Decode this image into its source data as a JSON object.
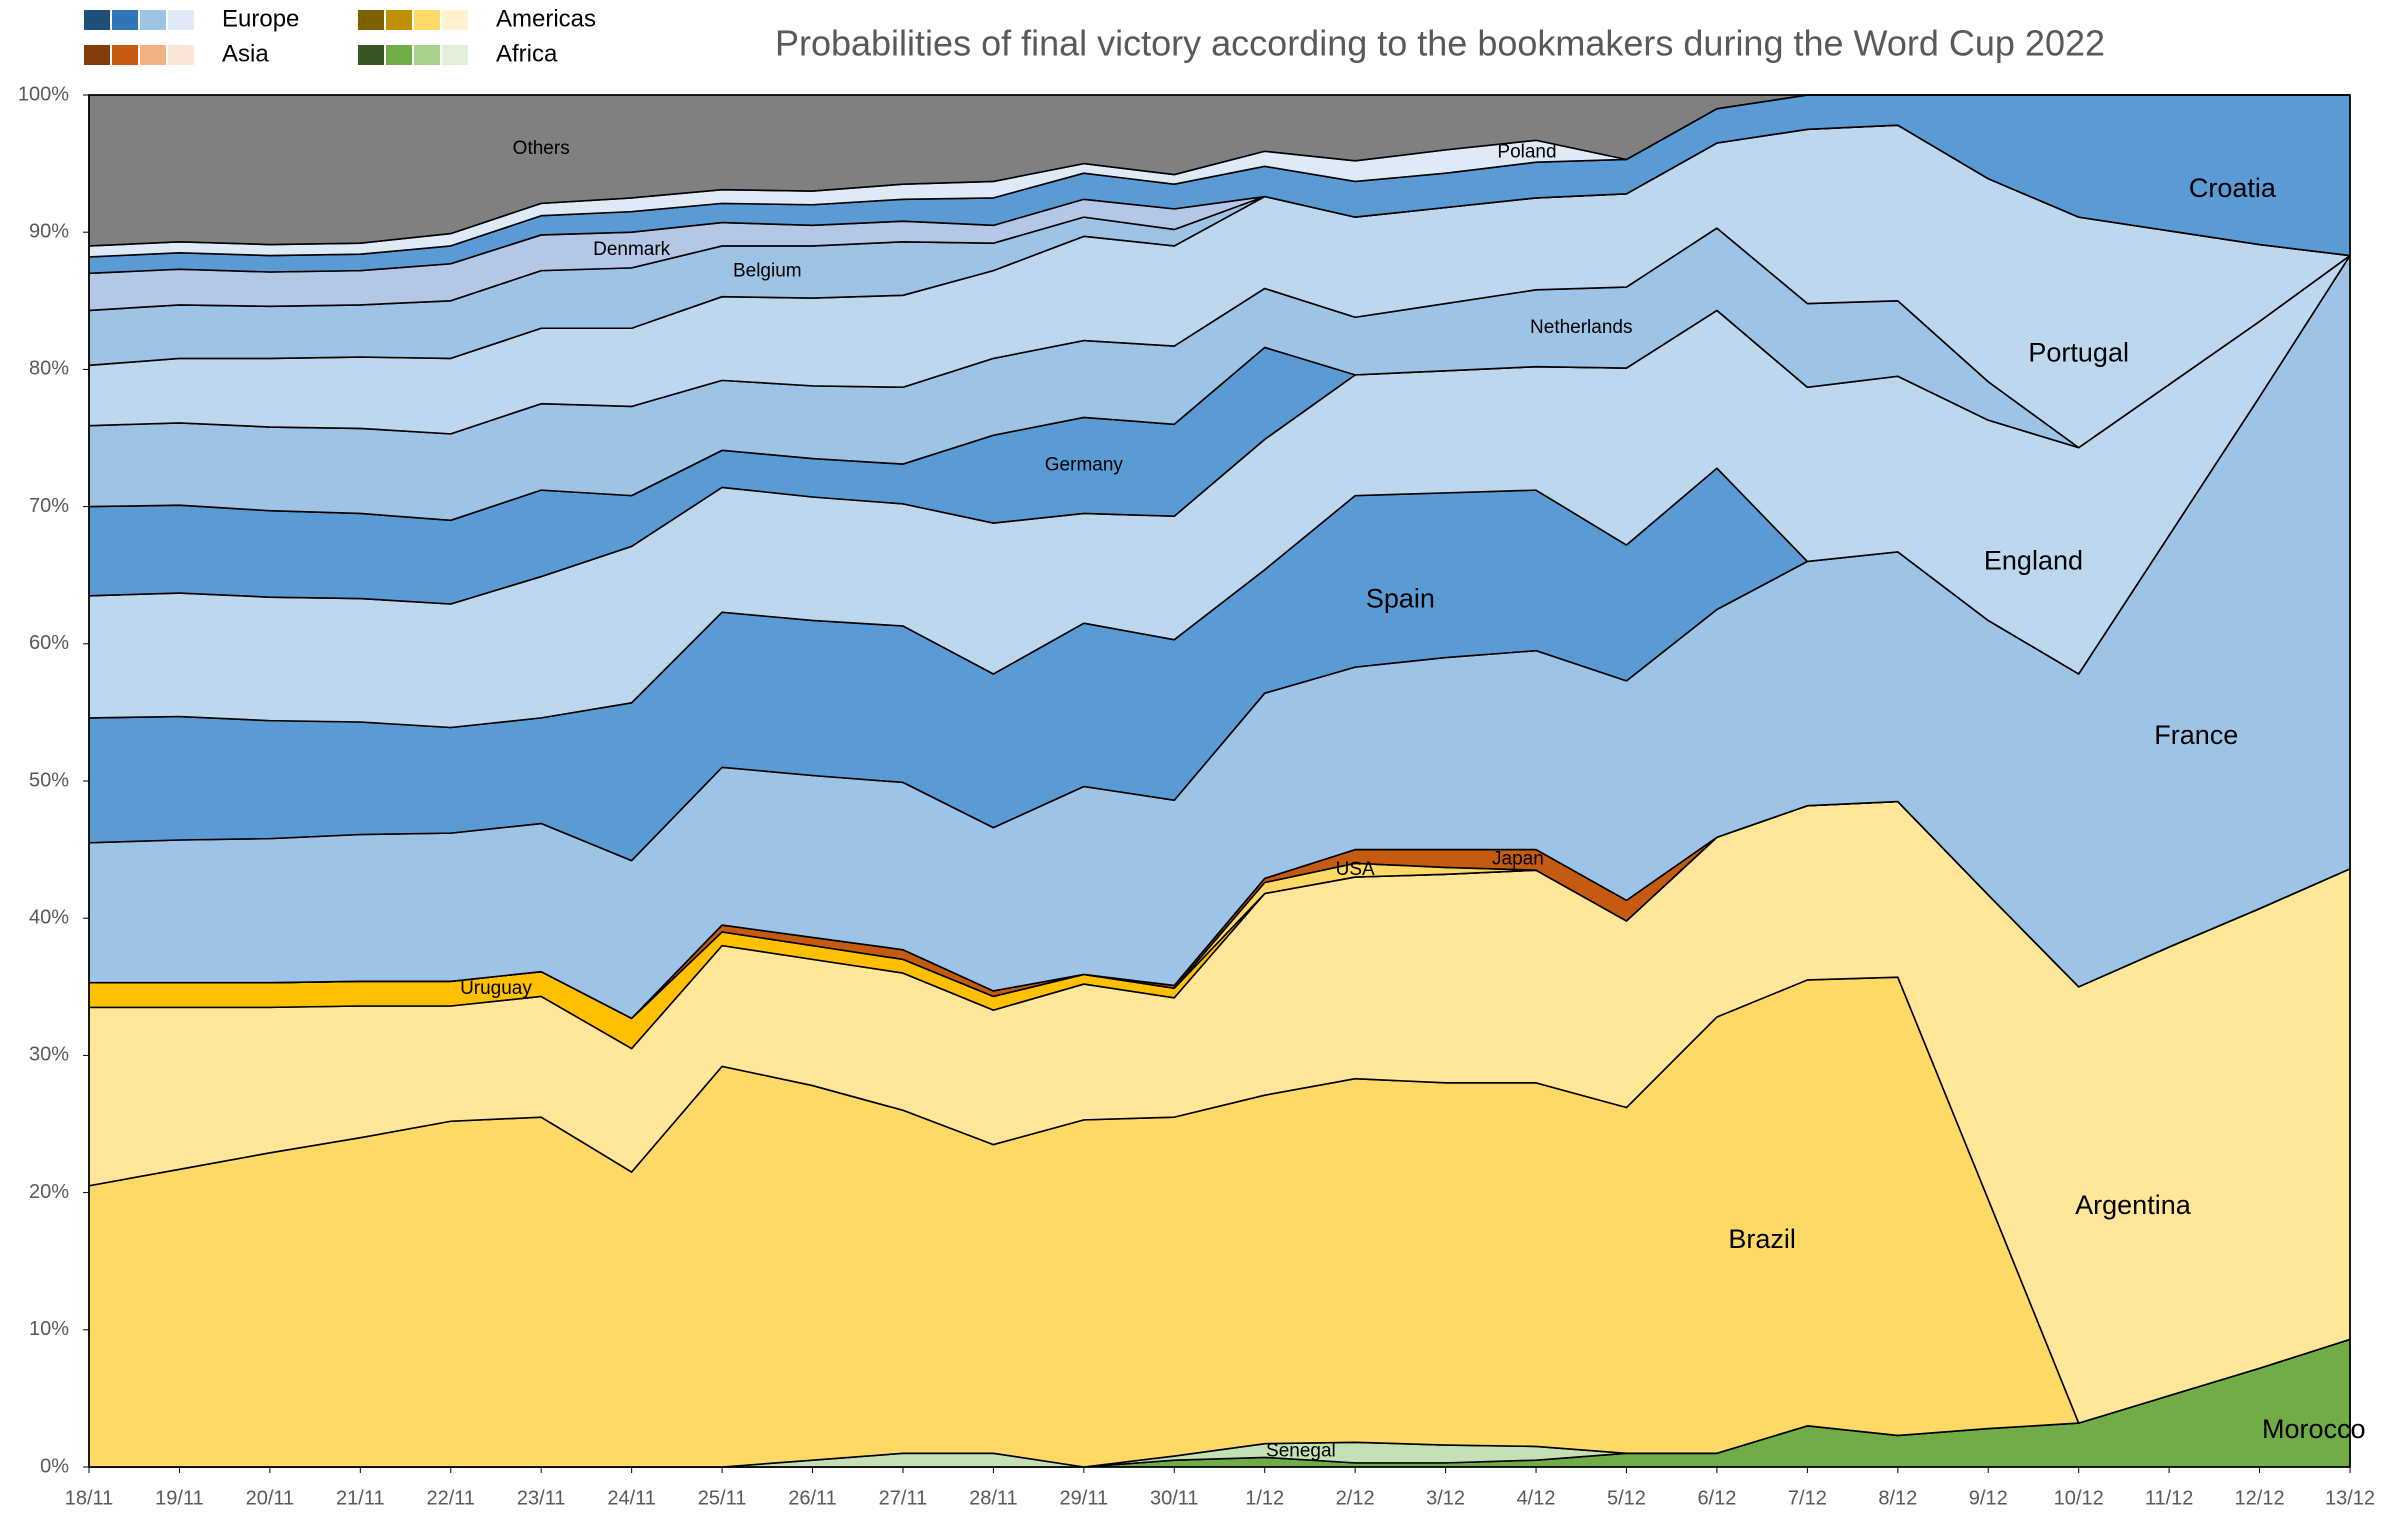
{
  "chart_data": {
    "type": "stacked_area",
    "title": "Probabilities of final victory according to the bookmakers during the Word Cup 2022",
    "categories": [
      "18/11",
      "19/11",
      "20/11",
      "21/11",
      "22/11",
      "23/11",
      "24/11",
      "25/11",
      "26/11",
      "27/11",
      "28/11",
      "29/11",
      "30/11",
      "1/12",
      "2/12",
      "3/12",
      "4/12",
      "5/12",
      "6/12",
      "7/12",
      "8/12",
      "9/12",
      "10/12",
      "11/12",
      "12/12",
      "13/12"
    ],
    "ylim": [
      0,
      100
    ],
    "yticks": [
      {
        "value": 0,
        "label": "0%"
      },
      {
        "value": 10,
        "label": "10%"
      },
      {
        "value": 20,
        "label": "20%"
      },
      {
        "value": 30,
        "label": "30%"
      },
      {
        "value": 40,
        "label": "40%"
      },
      {
        "value": 50,
        "label": "50%"
      },
      {
        "value": 60,
        "label": "60%"
      },
      {
        "value": 70,
        "label": "70%"
      },
      {
        "value": 80,
        "label": "80%"
      },
      {
        "value": 90,
        "label": "90%"
      },
      {
        "value": 100,
        "label": "100%"
      }
    ],
    "legend": [
      {
        "name": "Europe",
        "colors": [
          "#1f4e79",
          "#2e75b6",
          "#9dc3e6",
          "#deebf7"
        ]
      },
      {
        "name": "Asia",
        "colors": [
          "#843c0c",
          "#c55a11",
          "#f4b183",
          "#fbe5d6"
        ]
      },
      {
        "name": "Americas",
        "colors": [
          "#7f6000",
          "#bf9000",
          "#ffd966",
          "#fff2cc"
        ]
      },
      {
        "name": "Africa",
        "colors": [
          "#375623",
          "#70ad47",
          "#a9d18e",
          "#e2f0d9"
        ]
      }
    ],
    "series": [
      {
        "name": "Morocco",
        "color": "#70ad47",
        "values": [
          0,
          0,
          0,
          0,
          0,
          0,
          0,
          0,
          0,
          0,
          0,
          0,
          0.5,
          0.7,
          0.3,
          0.3,
          0.5,
          1,
          1,
          3,
          2.3,
          2.8,
          3.2,
          5.2,
          7.2,
          9.3
        ]
      },
      {
        "name": "Senegal",
        "color": "#c5e0b4",
        "values": [
          0,
          0,
          0,
          0,
          0,
          0,
          0,
          0,
          0.5,
          1,
          1,
          0,
          0.3,
          1,
          1.5,
          1.3,
          1,
          0,
          0,
          0,
          0,
          0,
          0,
          0,
          0,
          0
        ]
      },
      {
        "name": "Brazil",
        "color": "#ffd966",
        "values": [
          20.5,
          21.7,
          22.9,
          24,
          25.2,
          25.5,
          21.5,
          29.2,
          27.3,
          25,
          22.5,
          25.3,
          24.7,
          25.4,
          26.5,
          26.4,
          26.5,
          25.2,
          31.8,
          32.5,
          33.4,
          16.7,
          0,
          0,
          0,
          0
        ]
      },
      {
        "name": "Argentina",
        "color": "#ffe699",
        "values": [
          13,
          11.8,
          10.6,
          9.6,
          8.4,
          8.8,
          9,
          8.8,
          9.2,
          10,
          9.8,
          9.9,
          8.7,
          14.7,
          14.7,
          15.2,
          15.5,
          13.6,
          13.1,
          12.7,
          12.8,
          22.2,
          31.8,
          32.7,
          33.5,
          34.3
        ]
      },
      {
        "name": "Uruguay",
        "color": "#ffc000",
        "values": [
          1.8,
          1.8,
          1.8,
          1.8,
          1.8,
          1.8,
          2.2,
          1,
          1,
          1,
          1,
          0.7,
          0.7,
          0,
          0,
          0,
          0,
          0,
          0,
          0,
          0,
          0,
          0,
          0,
          0,
          0
        ]
      },
      {
        "name": "USA",
        "color": "#ffd966",
        "values": [
          0,
          0,
          0,
          0,
          0,
          0,
          0,
          0,
          0,
          0,
          0,
          0,
          0,
          0.8,
          1,
          0.5,
          0,
          0,
          0,
          0,
          0,
          0,
          0,
          0,
          0,
          0
        ]
      },
      {
        "name": "Japan",
        "color": "#c55a11",
        "values": [
          0,
          0,
          0,
          0,
          0,
          0,
          0,
          0.5,
          0.6,
          0.7,
          0.4,
          0,
          0.2,
          0.3,
          1,
          1.3,
          1.5,
          1.5,
          0,
          0,
          0,
          0,
          0,
          0,
          0,
          0
        ]
      },
      {
        "name": "France",
        "color": "#9dc3e6",
        "values": [
          10.2,
          10.4,
          10.5,
          10.7,
          10.8,
          10.8,
          11.5,
          11.5,
          11.8,
          12.2,
          11.9,
          13.7,
          13.5,
          13.5,
          13.3,
          14,
          14.5,
          16,
          16.6,
          17.8,
          18.2,
          20,
          22.8,
          30,
          37.3,
          44.7
        ]
      },
      {
        "name": "Spain",
        "color": "#5b9bd5",
        "values": [
          9.1,
          9,
          8.6,
          8.2,
          7.7,
          7.7,
          11.5,
          11.3,
          11.3,
          11.4,
          11.2,
          11.9,
          11.7,
          9,
          12.5,
          12,
          11.7,
          9.9,
          10.3,
          0,
          0,
          0,
          0,
          0,
          0,
          0
        ]
      },
      {
        "name": "England",
        "color": "#bdd7ee",
        "values": [
          8.9,
          9,
          9,
          9,
          9,
          10.3,
          11.4,
          9.1,
          9,
          8.9,
          11,
          8,
          9,
          9.5,
          8.8,
          8.9,
          9,
          12.9,
          11.5,
          12.7,
          12.8,
          14.6,
          16.5,
          11,
          5.5,
          0
        ]
      },
      {
        "name": "Germany",
        "color": "#5b9bd5",
        "values": [
          6.5,
          6.4,
          6.3,
          6.2,
          6.1,
          6.3,
          3.7,
          2.7,
          2.8,
          2.9,
          6.4,
          7,
          6.7,
          6.7,
          0,
          0,
          0,
          0,
          0,
          0,
          0,
          0,
          0,
          0,
          0,
          0
        ]
      },
      {
        "name": "Netherlands",
        "color": "#9dc3e6",
        "values": [
          5.9,
          6,
          6.1,
          6.2,
          6.3,
          6.3,
          6.5,
          5.1,
          5.3,
          5.6,
          5.6,
          5.6,
          5.7,
          4.3,
          4.2,
          4.9,
          5.6,
          5.9,
          6,
          6.1,
          5.5,
          2.8,
          0,
          0,
          0,
          0
        ]
      },
      {
        "name": "Portugal",
        "color": "#bdd7ee",
        "values": [
          4.4,
          4.7,
          5,
          5.2,
          5.5,
          5.5,
          5.7,
          6.1,
          6.4,
          6.7,
          6.4,
          7.6,
          7.3,
          6.7,
          7.3,
          7,
          6.7,
          6.8,
          6.2,
          12.7,
          12.8,
          14.8,
          16.8,
          11.2,
          5.6,
          0
        ]
      },
      {
        "name": "Belgium",
        "color": "#9dc3e6",
        "values": [
          4,
          3.9,
          3.8,
          3.8,
          4.2,
          4.2,
          4.4,
          3.7,
          3.8,
          3.9,
          2,
          1.4,
          1.2,
          0,
          0,
          0,
          0,
          0,
          0,
          0,
          0,
          0,
          0,
          0,
          0,
          0
        ]
      },
      {
        "name": "Denmark",
        "color": "#b4c7e7",
        "values": [
          2.7,
          2.6,
          2.5,
          2.5,
          2.7,
          2.6,
          2.6,
          1.7,
          1.5,
          1.5,
          1.3,
          1.3,
          1.5,
          0,
          0,
          0,
          0,
          0,
          0,
          0,
          0,
          0,
          0,
          0,
          0,
          0
        ]
      },
      {
        "name": "Croatia",
        "color": "#5b9bd5",
        "values": [
          1.2,
          1.2,
          1.2,
          1.2,
          1.3,
          1.4,
          1.5,
          1.4,
          1.5,
          1.6,
          2,
          1.9,
          1.8,
          2.2,
          2.6,
          2.5,
          2.6,
          2.5,
          2.5,
          2.5,
          2.2,
          6.1,
          8.9,
          9.9,
          10.9,
          11.7
        ]
      },
      {
        "name": "Poland",
        "color": "#deebf7",
        "values": [
          0.8,
          0.8,
          0.8,
          0.8,
          0.9,
          0.9,
          1,
          1,
          1,
          1.1,
          1.2,
          0.7,
          0.7,
          1.1,
          1.5,
          1.7,
          1.6,
          0,
          0,
          0,
          0,
          0,
          0,
          0,
          0,
          0
        ]
      },
      {
        "name": "Others",
        "color": "#808080",
        "values": [
          11,
          10.7,
          10.9,
          10.8,
          10.1,
          7.9,
          7.5,
          6.9,
          7,
          6.5,
          6.3,
          5,
          5.8,
          4.1,
          4.8,
          4,
          3.3,
          4.7,
          1,
          0,
          0,
          0,
          0,
          0,
          0,
          0
        ]
      }
    ]
  }
}
